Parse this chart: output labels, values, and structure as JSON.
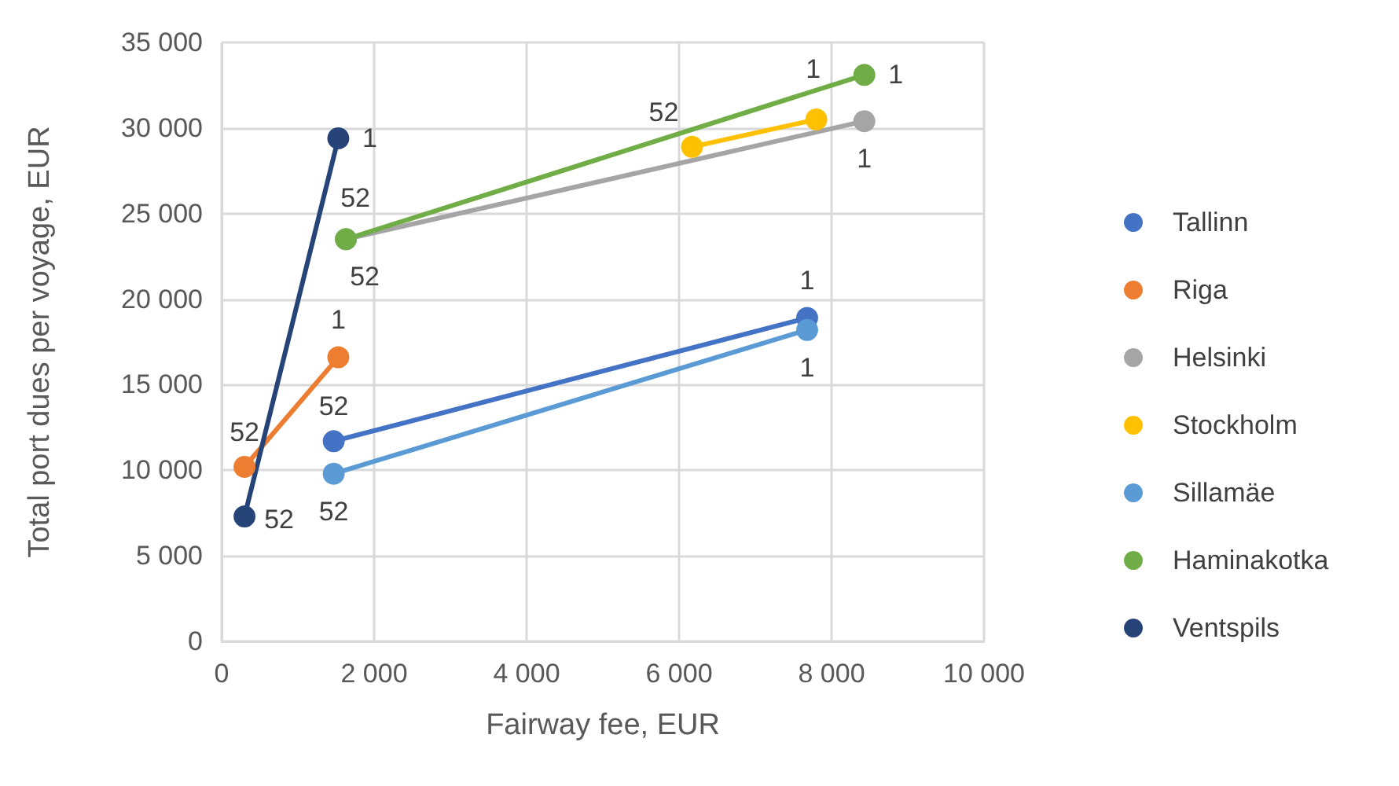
{
  "chart_data": {
    "type": "line",
    "xlabel": "Fairway fee, EUR",
    "ylabel": "Total port dues per voyage, EUR",
    "xlim": [
      0,
      10000
    ],
    "xticks": [
      {
        "value": 0,
        "label": "0"
      },
      {
        "value": 2000,
        "label": "2 000"
      },
      {
        "value": 4000,
        "label": "4 000"
      },
      {
        "value": 6000,
        "label": "6 000"
      },
      {
        "value": 8000,
        "label": "8 000"
      },
      {
        "value": 10000,
        "label": "10 000"
      }
    ],
    "ylim": [
      0,
      35000
    ],
    "yticks": [
      {
        "value": 0,
        "label": "0"
      },
      {
        "value": 5000,
        "label": "5 000"
      },
      {
        "value": 10000,
        "label": "10 000"
      },
      {
        "value": 15000,
        "label": "15 000"
      },
      {
        "value": 20000,
        "label": "20 000"
      },
      {
        "value": 25000,
        "label": "25 000"
      },
      {
        "value": 30000,
        "label": "30 000"
      },
      {
        "value": 35000,
        "label": "35 000"
      }
    ],
    "grid": true,
    "legend": "right",
    "marker": "circle",
    "line_style": "solid",
    "series": [
      {
        "name": "Tallinn",
        "color": "#4472c4",
        "x": [
          1470,
          7680
        ],
        "values": [
          11700,
          18900
        ]
      },
      {
        "name": "Riga",
        "color": "#ed7d31",
        "x": [
          300,
          1530
        ],
        "values": [
          10200,
          16600
        ]
      },
      {
        "name": "Helsinki",
        "color": "#a5a5a5",
        "x": [
          1630,
          8430
        ],
        "values": [
          23500,
          30400
        ]
      },
      {
        "name": "Stockholm",
        "color": "#ffc000",
        "x": [
          6170,
          7800
        ],
        "values": [
          28900,
          30500
        ]
      },
      {
        "name": "Sillamäe",
        "color": "#5b9bd5",
        "x": [
          1470,
          7680
        ],
        "values": [
          9800,
          18200
        ]
      },
      {
        "name": "Haminakotka",
        "color": "#70ad47",
        "x": [
          1630,
          8430
        ],
        "values": [
          23500,
          33100
        ]
      },
      {
        "name": "Ventspils",
        "color": "#264478",
        "x": [
          300,
          1530
        ],
        "values": [
          7300,
          29400
        ]
      }
    ],
    "annotations": [
      {
        "text": "52",
        "x": 1470,
        "y": 11700
      },
      {
        "text": "1",
        "x": 7680,
        "y": 18900
      },
      {
        "text": "52",
        "x": 300,
        "y": 10200
      },
      {
        "text": "1",
        "x": 1530,
        "y": 16600
      },
      {
        "text": "52",
        "x": 1630,
        "y": 23500
      },
      {
        "text": "1",
        "x": 8430,
        "y": 30400
      },
      {
        "text": "52",
        "x": 6170,
        "y": 28900
      },
      {
        "text": "1",
        "x": 7800,
        "y": 30500
      },
      {
        "text": "52",
        "x": 1470,
        "y": 9800
      },
      {
        "text": "1",
        "x": 7680,
        "y": 18200
      },
      {
        "text": "52",
        "x": 1630,
        "y": 23500
      },
      {
        "text": "1",
        "x": 8430,
        "y": 33100
      },
      {
        "text": "52",
        "x": 300,
        "y": 7300
      },
      {
        "text": "1",
        "x": 1530,
        "y": 29400
      }
    ]
  }
}
